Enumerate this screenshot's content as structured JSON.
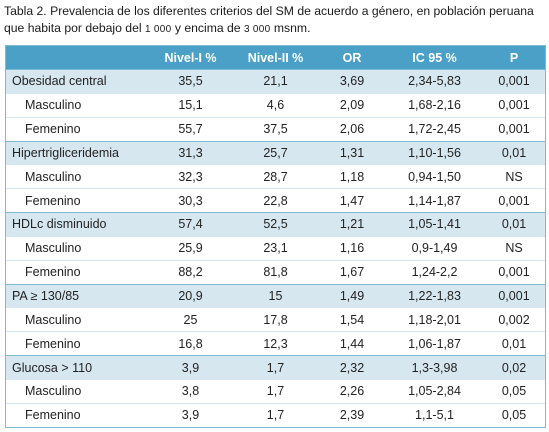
{
  "caption": {
    "part1": "Tabla 2. Prevalencia de los diferentes criterios del SM de acuerdo a género, en población peruana",
    "part2": "que habita por debajo del ",
    "num1": "1 000",
    "part3": " y encima de ",
    "num2": "3 000",
    "part4": " msnm."
  },
  "table": {
    "headers": [
      "",
      "Nivel-I %",
      "Nivel-II %",
      "OR",
      "IC 95 %",
      "P"
    ],
    "rows": [
      {
        "label": "Obesidad central",
        "n1": "35,5",
        "n2": "21,1",
        "or": "3,69",
        "ic": "2,34-5,83",
        "p": "0,001"
      },
      {
        "label": "Masculino",
        "n1": "15,1",
        "n2": "4,6",
        "or": "2,09",
        "ic": "1,68-2,16",
        "p": "0,001"
      },
      {
        "label": "Femenino",
        "n1": "55,7",
        "n2": "37,5",
        "or": "2,06",
        "ic": "1,72-2,45",
        "p": "0,001"
      },
      {
        "label": "Hipertrigliceridemia",
        "n1": "31,3",
        "n2": "25,7",
        "or": "1,31",
        "ic": "1,10-1,56",
        "p": "0,01"
      },
      {
        "label": "Masculino",
        "n1": "32,3",
        "n2": "28,7",
        "or": "1,18",
        "ic": "0,94-1,50",
        "p": "NS"
      },
      {
        "label": "Femenino",
        "n1": "30,3",
        "n2": "22,8",
        "or": "1,47",
        "ic": "1,14-1,87",
        "p": "0,001"
      },
      {
        "label": "HDLc disminuido",
        "n1": "57,4",
        "n2": "52,5",
        "or": "1,21",
        "ic": "1,05-1,41",
        "p": "0,01"
      },
      {
        "label": "Masculino",
        "n1": "25,9",
        "n2": "23,1",
        "or": "1,16",
        "ic": "0,9-1,49",
        "p": "NS"
      },
      {
        "label": "Femenino",
        "n1": "88,2",
        "n2": "81,8",
        "or": "1,67",
        "ic": "1,24-2,2",
        "p": "0,001"
      },
      {
        "label": "PA ≥ 130/85",
        "n1": "20,9",
        "n2": "15",
        "or": "1,49",
        "ic": "1,22-1,83",
        "p": "0,001"
      },
      {
        "label": "Masculino",
        "n1": "25",
        "n2": "17,8",
        "or": "1,54",
        "ic": "1,18-2,01",
        "p": "0,002"
      },
      {
        "label": "Femenino",
        "n1": "16,8",
        "n2": "12,3",
        "or": "1,44",
        "ic": "1,06-1,87",
        "p": "0,01"
      },
      {
        "label": "Glucosa > 110",
        "n1": "3,9",
        "n2": "1,7",
        "or": "2,32",
        "ic": "1,3-3,98",
        "p": "0,02"
      },
      {
        "label": "Masculino",
        "n1": "3,8",
        "n2": "1,7",
        "or": "2,26",
        "ic": "1,05-2,84",
        "p": "0,05"
      },
      {
        "label": "Femenino",
        "n1": "3,9",
        "n2": "1,7",
        "or": "2,39",
        "ic": "1,1-5,1",
        "p": "0,05"
      }
    ]
  }
}
